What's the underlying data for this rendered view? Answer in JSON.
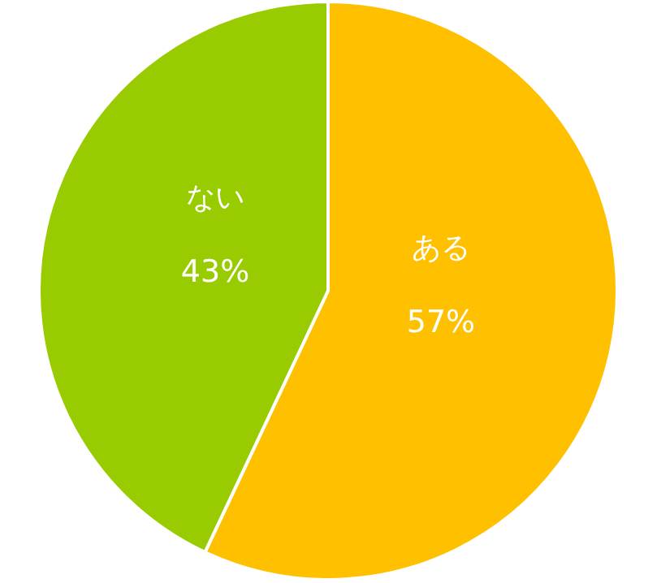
{
  "chart_data": {
    "type": "pie",
    "categories": [
      "ある",
      "ない"
    ],
    "values": [
      57,
      43
    ],
    "colors": [
      "#ffc000",
      "#99cc00"
    ],
    "value_labels": [
      "57%",
      "43%"
    ]
  }
}
